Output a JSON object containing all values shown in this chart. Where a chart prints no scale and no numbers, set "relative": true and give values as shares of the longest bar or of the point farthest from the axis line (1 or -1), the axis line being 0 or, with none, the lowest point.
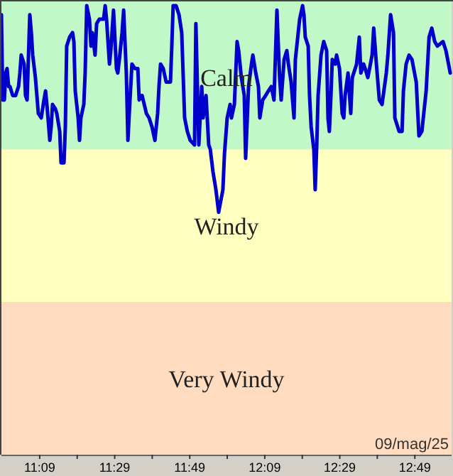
{
  "chart_data": {
    "type": "line",
    "relative": true,
    "xlim": [
      10.98,
      12.98
    ],
    "xticks": [
      {
        "value": 11.15,
        "label": "11:09"
      },
      {
        "value": 11.3167,
        "label": null
      },
      {
        "value": 11.4833,
        "label": "11:29"
      },
      {
        "value": 11.65,
        "label": null
      },
      {
        "value": 11.8167,
        "label": "11:49"
      },
      {
        "value": 11.9833,
        "label": null
      },
      {
        "value": 12.15,
        "label": "12:09"
      },
      {
        "value": 12.3167,
        "label": null
      },
      {
        "value": 12.4833,
        "label": "12:29"
      },
      {
        "value": 12.65,
        "label": null
      },
      {
        "value": 12.8167,
        "label": "12:49"
      }
    ],
    "bands": [
      {
        "axis": "y",
        "from": 0.68,
        "to": 1,
        "label": "Calm",
        "color": "#c0f8c8"
      },
      {
        "axis": "y",
        "from": 0.34,
        "to": 0.68,
        "label": "Windy",
        "color": "#ffffc0"
      },
      {
        "axis": "y",
        "from": 0,
        "to": 0.34,
        "label": "Very Windy",
        "color": "#ffdcc0"
      }
    ],
    "annotations": [
      "09/mag/25"
    ],
    "series": [
      {
        "color": "#0000cc",
        "x": [
          10.98,
          10.986,
          10.993,
          10.999,
          11.005,
          11.012,
          11.018,
          11.03,
          11.043,
          11.056,
          11.062,
          11.068,
          11.081,
          11.087,
          11.094,
          11.106,
          11.113,
          11.119,
          11.131,
          11.144,
          11.157,
          11.169,
          11.176,
          11.182,
          11.195,
          11.201,
          11.207,
          11.22,
          11.226,
          11.239,
          11.245,
          11.258,
          11.264,
          11.27,
          11.283,
          11.296,
          11.302,
          11.308,
          11.321,
          11.327,
          11.333,
          11.346,
          11.352,
          11.359,
          11.371,
          11.378,
          11.384,
          11.396,
          11.403,
          11.415,
          11.434,
          11.441,
          11.447,
          11.46,
          11.466,
          11.478,
          11.491,
          11.497,
          11.504,
          11.516,
          11.523,
          11.535,
          11.542,
          11.548,
          11.56,
          11.573,
          11.586,
          11.592,
          11.605,
          11.624,
          11.636,
          11.649,
          11.662,
          11.674,
          11.68,
          11.687,
          11.699,
          11.712,
          11.731,
          11.737,
          11.743,
          11.756,
          11.769,
          11.781,
          11.794,
          11.806,
          11.819,
          11.838,
          11.844,
          11.857,
          11.87,
          11.876,
          11.889,
          11.901,
          11.908,
          11.92,
          11.933,
          11.945,
          11.964,
          11.971,
          11.983,
          11.996,
          12.002,
          12.015,
          12.027,
          12.034,
          12.046,
          12.059,
          12.065,
          12.078,
          12.091,
          12.097,
          12.11,
          12.122,
          12.128,
          12.141,
          12.154,
          12.166,
          12.179,
          12.191,
          12.204,
          12.216,
          12.223,
          12.236,
          12.248,
          12.255,
          12.267,
          12.28,
          12.286,
          12.305,
          12.318,
          12.324,
          12.33,
          12.343,
          12.349,
          12.356,
          12.368,
          12.374,
          12.381,
          12.387,
          12.4,
          12.412,
          12.425,
          12.431,
          12.437,
          12.444,
          12.45,
          12.463,
          12.469,
          12.482,
          12.494,
          12.501,
          12.507,
          12.52,
          12.532,
          12.539,
          12.558,
          12.57,
          12.577,
          12.589,
          12.596,
          12.608,
          12.627,
          12.634,
          12.646,
          12.659,
          12.671,
          12.69,
          12.697,
          12.709,
          12.722,
          12.728,
          12.747,
          12.76,
          12.766,
          12.778,
          12.791,
          12.804,
          12.823,
          12.835,
          12.848,
          12.867,
          12.88,
          12.892,
          12.905,
          12.917,
          12.942,
          12.955,
          12.974
        ],
        "values": [
          0.98,
          0.79,
          0.79,
          0.85,
          0.86,
          0.82,
          0.82,
          0.8,
          0.8,
          0.82,
          0.85,
          0.89,
          0.87,
          0.8,
          0.79,
          0.98,
          0.94,
          0.89,
          0.84,
          0.76,
          0.75,
          0.79,
          0.81,
          0.78,
          0.7,
          0.73,
          0.78,
          0.77,
          0.76,
          0.72,
          0.65,
          0.65,
          0.73,
          0.91,
          0.93,
          0.94,
          0.92,
          0.81,
          0.75,
          0.7,
          0.75,
          0.78,
          0.85,
          1.0,
          0.97,
          0.91,
          0.94,
          0.89,
          0.96,
          0.97,
          0.97,
          1.0,
          0.97,
          0.87,
          0.9,
          0.99,
          0.86,
          0.85,
          0.88,
          0.94,
          0.99,
          0.85,
          0.7,
          0.76,
          0.87,
          0.86,
          0.86,
          0.79,
          0.8,
          0.76,
          0.75,
          0.73,
          0.7,
          0.76,
          0.82,
          0.87,
          0.86,
          0.83,
          0.83,
          0.91,
          1.0,
          1.0,
          0.98,
          0.94,
          0.75,
          0.72,
          0.7,
          0.69,
          0.96,
          0.69,
          0.82,
          0.75,
          0.8,
          0.69,
          0.68,
          0.63,
          0.59,
          0.54,
          0.59,
          0.67,
          0.75,
          0.78,
          0.75,
          0.78,
          0.92,
          0.9,
          0.84,
          0.8,
          0.66,
          0.82,
          0.87,
          0.89,
          0.85,
          0.82,
          0.75,
          0.79,
          0.8,
          0.81,
          0.82,
          0.79,
          0.99,
          0.84,
          0.79,
          0.88,
          0.9,
          0.87,
          0.83,
          0.75,
          0.88,
          0.97,
          1.0,
          0.98,
          0.93,
          0.91,
          0.8,
          0.73,
          0.68,
          0.59,
          0.69,
          0.8,
          0.89,
          0.92,
          0.9,
          0.75,
          0.72,
          0.8,
          0.88,
          0.87,
          0.89,
          0.86,
          0.76,
          0.75,
          0.8,
          0.85,
          0.76,
          0.84,
          0.87,
          0.93,
          0.85,
          0.87,
          0.86,
          0.84,
          0.89,
          0.95,
          0.87,
          0.79,
          0.78,
          0.85,
          0.89,
          0.98,
          0.94,
          0.75,
          0.72,
          0.72,
          0.81,
          0.87,
          0.89,
          0.88,
          0.83,
          0.71,
          0.72,
          0.81,
          0.93,
          0.95,
          0.92,
          0.91,
          0.92,
          0.9,
          0.85
        ]
      }
    ]
  }
}
